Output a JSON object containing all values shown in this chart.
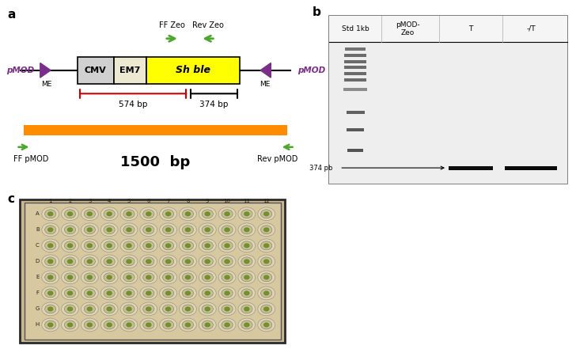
{
  "fig_label_a": "a",
  "fig_label_b": "b",
  "fig_label_c": "c",
  "panel_a": {
    "pmod_left_text": "pMOD",
    "pmod_right_text": "pMOD",
    "me_left": "ME",
    "me_right": "ME",
    "cmv_label": "CMV",
    "em7_label": "EM7",
    "shble_label": "Sh ble",
    "ff_zeo_label": "FF Zeo",
    "rev_zeo_label": "Rev Zeo",
    "bp574_label": "574 bp",
    "bp374_label": "374 bp",
    "ff_pmod_label": "FF pMOD",
    "rev_pmod_label": "Rev pMOD",
    "bp1500_label": "1500  bp",
    "purple": "#7B2D8B",
    "orange": "#FF8C00",
    "green_arrow": "#4CA829",
    "yellow": "#FFFF00",
    "red": "#CC0000",
    "black": "#000000",
    "lightgray": "#D0D0D0",
    "beige": "#EDE8D0"
  },
  "panel_b": {
    "col_labels": [
      "Std 1kb",
      "pMOD-\nZeo",
      "T",
      "-/T"
    ],
    "band_label": "374 pb",
    "bg_color": "#E8E8E8"
  },
  "panel_c": {
    "rows": 8,
    "cols": 12,
    "plate_bg": "#C8B890",
    "well_color": "#E8DFC0",
    "spot_color": "#7A9A30",
    "row_letters": [
      "A",
      "B",
      "C",
      "D",
      "E",
      "F",
      "G",
      "H"
    ]
  }
}
